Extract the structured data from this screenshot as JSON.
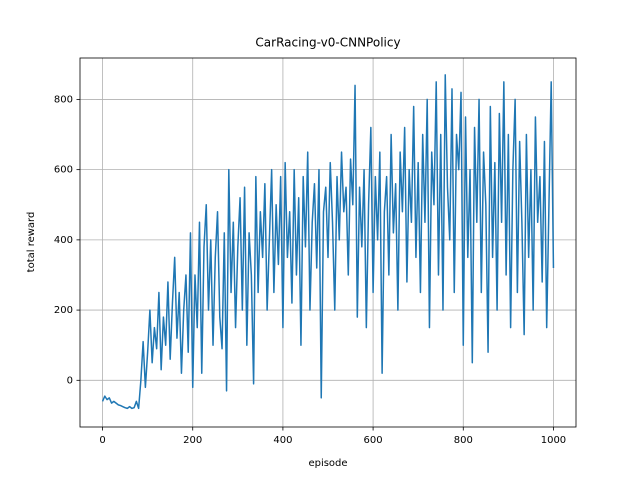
{
  "chart_data": {
    "type": "line",
    "title": "CarRacing-v0-CNNPolicy",
    "x_label": "episode",
    "y_label": "total reward",
    "xlim": [
      -50,
      1050
    ],
    "ylim": [
      -133,
      918
    ],
    "xticks": [
      0,
      200,
      400,
      600,
      800,
      1000
    ],
    "yticks": [
      0,
      200,
      400,
      600,
      800
    ],
    "grid": true,
    "x": [
      0,
      5,
      10,
      15,
      20,
      25,
      30,
      35,
      40,
      45,
      50,
      55,
      60,
      65,
      70,
      75,
      80,
      85,
      90,
      95,
      100,
      105,
      110,
      115,
      120,
      125,
      130,
      135,
      140,
      145,
      150,
      155,
      160,
      165,
      170,
      175,
      180,
      185,
      190,
      195,
      200,
      205,
      210,
      215,
      220,
      225,
      230,
      235,
      240,
      245,
      250,
      255,
      260,
      265,
      270,
      275,
      280,
      285,
      290,
      295,
      300,
      305,
      310,
      315,
      320,
      325,
      330,
      335,
      340,
      345,
      350,
      355,
      360,
      365,
      370,
      375,
      380,
      385,
      390,
      395,
      400,
      405,
      410,
      415,
      420,
      425,
      430,
      435,
      440,
      445,
      450,
      455,
      460,
      465,
      470,
      475,
      480,
      485,
      490,
      495,
      500,
      505,
      510,
      515,
      520,
      525,
      530,
      535,
      540,
      545,
      550,
      555,
      560,
      565,
      570,
      575,
      580,
      585,
      590,
      595,
      600,
      605,
      610,
      615,
      620,
      625,
      630,
      635,
      640,
      645,
      650,
      655,
      660,
      665,
      670,
      675,
      680,
      685,
      690,
      695,
      700,
      705,
      710,
      715,
      720,
      725,
      730,
      735,
      740,
      745,
      750,
      755,
      760,
      765,
      770,
      775,
      780,
      785,
      790,
      795,
      800,
      805,
      810,
      815,
      820,
      825,
      830,
      835,
      840,
      845,
      850,
      855,
      860,
      865,
      870,
      875,
      880,
      885,
      890,
      895,
      900,
      905,
      910,
      915,
      920,
      925,
      930,
      935,
      940,
      945,
      950,
      955,
      960,
      965,
      970,
      975,
      980,
      985,
      990,
      995,
      1000
    ],
    "series": [
      {
        "color": "#1f77b4",
        "values": [
          -60,
          -45,
          -55,
          -50,
          -65,
          -60,
          -65,
          -70,
          -72,
          -75,
          -78,
          -80,
          -75,
          -80,
          -78,
          -60,
          -80,
          0,
          110,
          -20,
          80,
          200,
          50,
          150,
          90,
          250,
          30,
          180,
          100,
          280,
          60,
          220,
          350,
          120,
          250,
          20,
          200,
          300,
          80,
          420,
          -20,
          300,
          150,
          450,
          20,
          380,
          500,
          200,
          400,
          100,
          350,
          480,
          180,
          90,
          420,
          -30,
          600,
          250,
          450,
          150,
          380,
          520,
          200,
          550,
          100,
          420,
          300,
          -10,
          580,
          250,
          480,
          350,
          560,
          200,
          400,
          600,
          250,
          500,
          330,
          580,
          150,
          620,
          350,
          480,
          220,
          600,
          300,
          520,
          100,
          580,
          380,
          650,
          200,
          450,
          560,
          320,
          600,
          -50,
          480,
          550,
          350,
          620,
          450,
          200,
          580,
          400,
          650,
          480,
          550,
          300,
          630,
          500,
          840,
          180,
          550,
          380,
          600,
          150,
          500,
          720,
          250,
          580,
          400,
          650,
          20,
          480,
          580,
          300,
          700,
          420,
          560,
          200,
          650,
          480,
          720,
          280,
          600,
          450,
          780,
          350,
          620,
          250,
          700,
          450,
          800,
          150,
          650,
          500,
          850,
          300,
          700,
          200,
          870,
          550,
          400,
          830,
          250,
          700,
          600,
          820,
          100,
          750,
          350,
          600,
          50,
          720,
          450,
          800,
          250,
          650,
          500,
          80,
          780,
          350,
          620,
          200,
          760,
          450,
          850,
          300,
          700,
          150,
          600,
          800,
          250,
          680,
          450,
          130,
          700,
          350,
          600,
          200,
          750,
          450,
          580,
          280,
          680,
          150,
          500,
          850,
          320
        ]
      }
    ]
  }
}
